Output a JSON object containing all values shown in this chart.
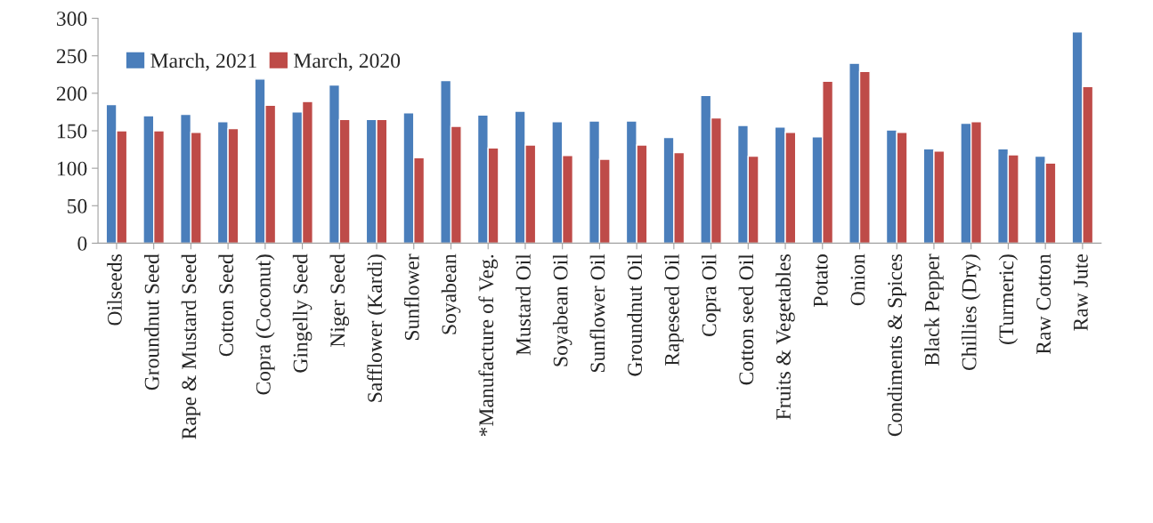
{
  "chart_data": {
    "type": "bar",
    "categories": [
      "Oilseeds",
      "Groundnut Seed",
      "Rape & Mustard Seed",
      "Cotton Seed",
      "Copra (Coconut)",
      "Gingelly Seed",
      "Niger Seed",
      "Safflower (Kardi)",
      "Sunflower",
      "Soyabean",
      "*Manufacture of Veg.",
      "Mustard Oil",
      "Soyabean Oil",
      "Sunflower Oil",
      "Groundnut Oil",
      "Rapeseed Oil",
      "Copra Oil",
      "Cotton seed Oil",
      "Fruits & Vegetables",
      "Potato",
      "Onion",
      "Condiments & Spices",
      "Black Pepper",
      "Chillies (Dry)",
      "(Turmeric)",
      "Raw Cotton",
      "Raw Jute"
    ],
    "series": [
      {
        "name": "March, 2021",
        "color": "#4a7ebb",
        "values": [
          185,
          170,
          172,
          162,
          219,
          175,
          211,
          165,
          174,
          217,
          171,
          176,
          162,
          163,
          163,
          141,
          197,
          157,
          155,
          142,
          240,
          151,
          126,
          160,
          126,
          116,
          282
        ]
      },
      {
        "name": "March, 2020",
        "color": "#be4b48",
        "values": [
          150,
          150,
          148,
          153,
          184,
          189,
          165,
          165,
          114,
          156,
          127,
          131,
          117,
          112,
          131,
          121,
          167,
          116,
          148,
          216,
          229,
          148,
          123,
          162,
          118,
          107,
          209
        ]
      }
    ],
    "ylim": [
      0,
      300
    ],
    "yticks": [
      0,
      50,
      100,
      150,
      200,
      250,
      300
    ],
    "grid": false,
    "legend": "top left"
  }
}
